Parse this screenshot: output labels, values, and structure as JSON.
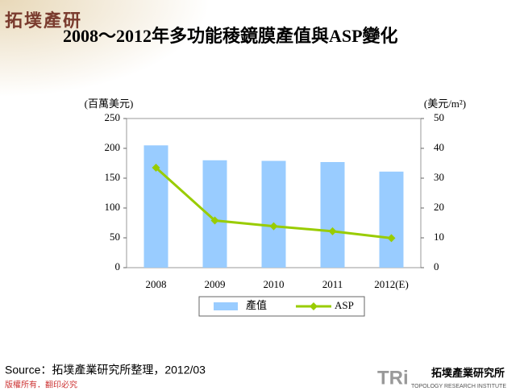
{
  "logo": "拓墣產研",
  "chart_data": {
    "type": "combo",
    "title": "2008～2012年多功能稜鏡膜產值與ASP變化",
    "y_label": "(百萬美元)",
    "y2_label": "(美元/m²)",
    "categories": [
      "2008",
      "2009",
      "2010",
      "2011",
      "2012(E)"
    ],
    "series": [
      {
        "name": "產值",
        "type": "bar",
        "color": "#99ccff",
        "values": [
          205,
          180,
          179,
          177,
          161
        ]
      },
      {
        "name": "ASP",
        "type": "line",
        "axis": "y2",
        "color": "#99cc00",
        "values": [
          33.5,
          15.8,
          13.9,
          12.2,
          9.9
        ]
      }
    ],
    "ylim": [
      0,
      250
    ],
    "yticks": [
      0,
      50,
      100,
      150,
      200,
      250
    ],
    "y2lim": [
      0,
      50
    ],
    "y2ticks": [
      0,
      10,
      20,
      30,
      40,
      50
    ]
  },
  "source": "Source：拓墣產業研究所整理，2012/03",
  "footer": {
    "copyright": "版權所有．翻印必究",
    "brand": "TRi",
    "company": "拓墣產業研究所",
    "company_en": "TOPOLOGY RESEARCH INSTITUTE"
  }
}
